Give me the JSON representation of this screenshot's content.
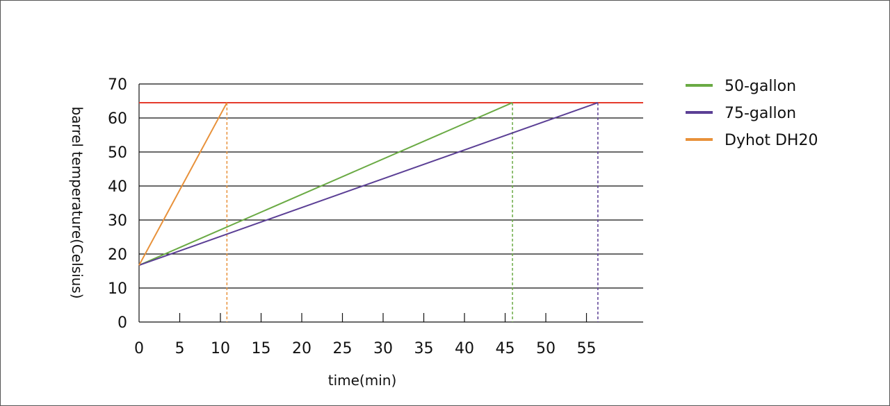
{
  "chart_data": {
    "type": "line",
    "xlabel": "time(min)",
    "ylabel": "barrel temperature(Celsius)",
    "xlim": [
      0,
      62
    ],
    "ylim": [
      0,
      70
    ],
    "x_ticks": [
      0,
      5,
      10,
      15,
      20,
      25,
      30,
      35,
      40,
      45,
      50,
      55
    ],
    "y_ticks": [
      0,
      10,
      20,
      30,
      40,
      50,
      60,
      70
    ],
    "grid": "horizontal",
    "legend_position": "right",
    "target_line": {
      "y": 64.5,
      "color": "#e53a2b"
    },
    "series": [
      {
        "name": "50-gallon",
        "color": "#6aaa44",
        "x": [
          0,
          45.9
        ],
        "y": [
          16.7,
          64.5
        ],
        "drop_x": 45.9
      },
      {
        "name": "75-gallon",
        "color": "#5b3f95",
        "x": [
          0,
          56.4
        ],
        "y": [
          16.7,
          64.5
        ],
        "drop_x": 56.4
      },
      {
        "name": "Dyhot DH20",
        "color": "#e8913a",
        "x": [
          0,
          10.8
        ],
        "y": [
          16.7,
          64.5
        ],
        "drop_x": 10.8
      }
    ]
  }
}
